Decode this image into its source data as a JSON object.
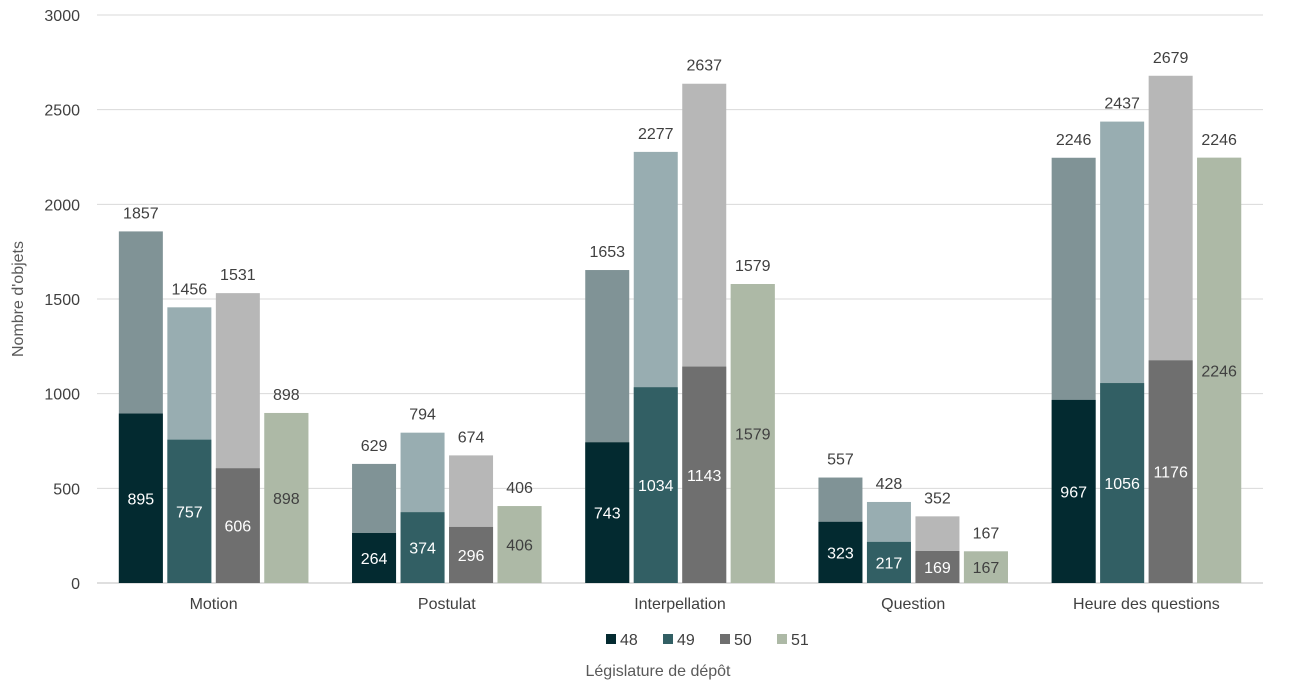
{
  "chart_data": {
    "type": "bar",
    "stacked": "overlay",
    "categories": [
      "Motion",
      "Postulat",
      "Interpellation",
      "Question",
      "Heure des questions"
    ],
    "series": [
      {
        "name": "48",
        "total": [
          1857,
          629,
          1653,
          557,
          2246
        ],
        "inner": [
          895,
          264,
          743,
          323,
          967
        ]
      },
      {
        "name": "49",
        "total": [
          1456,
          794,
          2277,
          428,
          2437
        ],
        "inner": [
          757,
          374,
          1034,
          217,
          1056
        ]
      },
      {
        "name": "50",
        "total": [
          1531,
          674,
          2637,
          352,
          2679
        ],
        "inner": [
          606,
          296,
          1143,
          169,
          1176
        ]
      },
      {
        "name": "51",
        "total": [
          898,
          406,
          1579,
          167,
          2246
        ],
        "inner": [
          898,
          406,
          1579,
          167,
          2246
        ]
      }
    ],
    "xlabel": "Législature de dépôt",
    "ylabel": "Nombre d'objets",
    "ylim": [
      0,
      3000
    ],
    "yticks": [
      0,
      500,
      1000,
      1500,
      2000,
      2500,
      3000
    ],
    "grid": true,
    "legend_position": "bottom",
    "colors": {
      "inner": [
        "#032a30",
        "#325f64",
        "#6f6f6f",
        "#adb9a6"
      ],
      "outer": [
        "#809396",
        "#98adb1",
        "#b7b7b7",
        "#adb9a6"
      ],
      "inner_label": [
        "#ffffff",
        "#ffffff",
        "#ffffff",
        "#404040"
      ]
    }
  }
}
